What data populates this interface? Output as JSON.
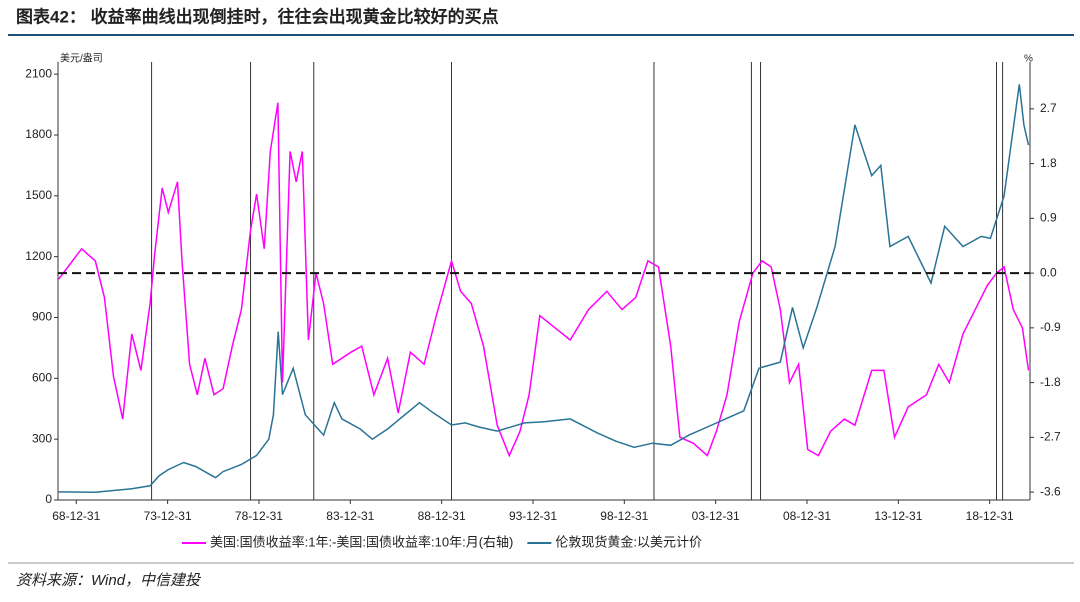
{
  "chart_data": {
    "type": "line",
    "title": "图表42： 收益率曲线出现倒挂时，往往会出现黄金比较好的买点",
    "ylabel": "美元/盎司",
    "y2label": "%",
    "source": "资料来源：Wind，中信建投",
    "xlim": [
      "1967-12-31",
      "2021-03-15"
    ],
    "xticks": [
      {
        "value": "1968-12-31",
        "label": "68-12-31"
      },
      {
        "value": "1973-12-31",
        "label": "73-12-31"
      },
      {
        "value": "1978-12-31",
        "label": "78-12-31"
      },
      {
        "value": "1983-12-31",
        "label": "83-12-31"
      },
      {
        "value": "1988-12-31",
        "label": "88-12-31"
      },
      {
        "value": "1993-12-31",
        "label": "93-12-31"
      },
      {
        "value": "1998-12-31",
        "label": "98-12-31"
      },
      {
        "value": "2003-12-31",
        "label": "03-12-31"
      },
      {
        "value": "2008-12-31",
        "label": "08-12-31"
      },
      {
        "value": "2013-12-31",
        "label": "13-12-31"
      },
      {
        "value": "2018-12-31",
        "label": "18-12-31"
      }
    ],
    "ylim": [
      0,
      2160
    ],
    "yticks": [
      0,
      300,
      600,
      900,
      1200,
      1500,
      1800,
      2100
    ],
    "y2lim": [
      -3.73,
      3.47
    ],
    "y2ticks": [
      2.7,
      1.8,
      0.9,
      {
        "value": 0,
        "label": "0.0"
      },
      -0.9,
      -1.8,
      -2.7,
      -3.6
    ],
    "reference_y2": 0,
    "vlines": [
      "1973-02-15",
      "1978-07-15",
      "1981-12-31",
      "1989-07-15",
      "2000-08-15",
      "2005-12-15",
      "2006-06-15",
      "2019-05-15",
      "2019-09-15"
    ],
    "series": [
      {
        "name": "美国:国债收益率:1年:-美国:国债收益率:10年:月(右轴)",
        "color": "#ff00ff",
        "axis": "y2",
        "x": [
          "1968-01-15",
          "1968-07-15",
          "1969-04-15",
          "1970-01-15",
          "1970-07-15",
          "1971-01-15",
          "1971-07-15",
          "1972-01-15",
          "1972-07-15",
          "1973-01-15",
          "1973-04-15",
          "1973-09-15",
          "1974-01-15",
          "1974-07-15",
          "1974-10-15",
          "1975-03-15",
          "1975-08-15",
          "1976-01-15",
          "1976-07-15",
          "1977-01-15",
          "1977-07-15",
          "1978-01-15",
          "1978-07-15",
          "1978-11-15",
          "1979-04-15",
          "1979-08-15",
          "1980-01-15",
          "1980-04-15",
          "1980-09-15",
          "1981-01-15",
          "1981-05-15",
          "1981-09-15",
          "1982-02-15",
          "1982-07-15",
          "1983-01-15",
          "1984-01-15",
          "1984-08-15",
          "1985-04-15",
          "1986-01-15",
          "1986-08-15",
          "1987-04-15",
          "1988-01-15",
          "1988-09-15",
          "1989-07-15",
          "1990-01-15",
          "1990-08-15",
          "1991-04-15",
          "1992-01-15",
          "1992-09-15",
          "1993-04-15",
          "1993-10-15",
          "1994-05-15",
          "1995-03-15",
          "1996-01-15",
          "1997-01-15",
          "1998-01-15",
          "1998-11-15",
          "1999-08-15",
          "2000-04-15",
          "2000-11-15",
          "2001-07-15",
          "2002-01-15",
          "2002-10-15",
          "2003-07-15",
          "2004-01-15",
          "2004-08-15",
          "2005-04-15",
          "2006-01-15",
          "2006-07-15",
          "2007-01-15",
          "2007-07-15",
          "2008-01-15",
          "2008-07-15",
          "2009-01-15",
          "2009-08-15",
          "2010-04-15",
          "2011-01-15",
          "2011-08-15",
          "2012-07-15",
          "2013-03-15",
          "2013-10-15",
          "2014-07-15",
          "2015-07-15",
          "2016-03-15",
          "2016-10-15",
          "2017-07-15",
          "2018-03-15",
          "2018-11-15",
          "2019-05-15",
          "2019-10-15",
          "2020-04-15",
          "2020-10-15",
          "2021-02-15"
        ],
        "values": [
          -0.1,
          0.1,
          0.4,
          0.2,
          -0.4,
          -1.7,
          -2.4,
          -1.0,
          -1.6,
          -0.5,
          0.3,
          1.4,
          1.0,
          1.5,
          0.2,
          -1.5,
          -2.0,
          -1.4,
          -2.0,
          -1.9,
          -1.2,
          -0.6,
          0.7,
          1.3,
          0.4,
          2.0,
          2.8,
          -1.8,
          2.0,
          1.5,
          2.0,
          -1.1,
          0.0,
          -0.5,
          -1.5,
          -1.3,
          -1.2,
          -2.0,
          -1.4,
          -2.3,
          -1.3,
          -1.5,
          -0.7,
          0.2,
          -0.3,
          -0.5,
          -1.2,
          -2.5,
          -3.0,
          -2.6,
          -2.0,
          -0.7,
          -0.9,
          -1.1,
          -0.6,
          -0.3,
          -0.6,
          -0.4,
          0.2,
          0.1,
          -1.2,
          -2.7,
          -2.8,
          -3.0,
          -2.6,
          -2.0,
          -0.8,
          0.0,
          0.2,
          0.1,
          -0.6,
          -1.8,
          -1.5,
          -2.9,
          -3.0,
          -2.6,
          -2.4,
          -2.5,
          -1.6,
          -1.6,
          -2.7,
          -2.2,
          -2.0,
          -1.5,
          -1.8,
          -1.0,
          -0.6,
          -0.2,
          0.0,
          0.1,
          -0.6,
          -0.9,
          -1.6
        ]
      },
      {
        "name": "伦敦现货黄金:以美元计价",
        "color": "#2a7396",
        "axis": "y",
        "x": [
          "1968-01-15",
          "1970-01-15",
          "1972-01-15",
          "1973-01-15",
          "1973-07-15",
          "1974-01-15",
          "1974-11-15",
          "1975-07-15",
          "1976-08-15",
          "1977-01-15",
          "1978-01-15",
          "1978-11-15",
          "1979-07-15",
          "1979-10-15",
          "1980-01-20",
          "1980-04-15",
          "1980-11-15",
          "1981-07-15",
          "1982-07-15",
          "1983-02-15",
          "1983-07-15",
          "1984-07-15",
          "1985-03-15",
          "1986-01-15",
          "1987-10-15",
          "1988-07-15",
          "1989-07-15",
          "1990-04-15",
          "1991-01-15",
          "1992-01-15",
          "1993-07-15",
          "1994-07-15",
          "1996-01-15",
          "1997-07-15",
          "1998-07-15",
          "1999-07-15",
          "2000-07-15",
          "2001-07-15",
          "2002-07-15",
          "2003-07-15",
          "2004-07-15",
          "2005-07-15",
          "2006-05-15",
          "2007-07-15",
          "2008-03-15",
          "2008-10-15",
          "2009-07-15",
          "2010-07-15",
          "2011-08-15",
          "2012-07-15",
          "2013-01-15",
          "2013-07-15",
          "2014-07-15",
          "2015-10-15",
          "2016-07-15",
          "2017-07-15",
          "2018-07-15",
          "2019-01-15",
          "2019-10-15",
          "2020-08-15",
          "2020-11-15",
          "2021-02-15"
        ],
        "values": [
          40,
          38,
          55,
          70,
          120,
          150,
          185,
          165,
          110,
          140,
          175,
          220,
          300,
          420,
          830,
          520,
          650,
          420,
          320,
          480,
          400,
          350,
          300,
          350,
          480,
          430,
          370,
          380,
          360,
          340,
          380,
          385,
          400,
          330,
          290,
          260,
          280,
          270,
          320,
          360,
          400,
          440,
          650,
          680,
          950,
          750,
          950,
          1250,
          1850,
          1600,
          1650,
          1250,
          1300,
          1070,
          1350,
          1250,
          1300,
          1290,
          1500,
          2050,
          1850,
          1750
        ]
      }
    ]
  }
}
